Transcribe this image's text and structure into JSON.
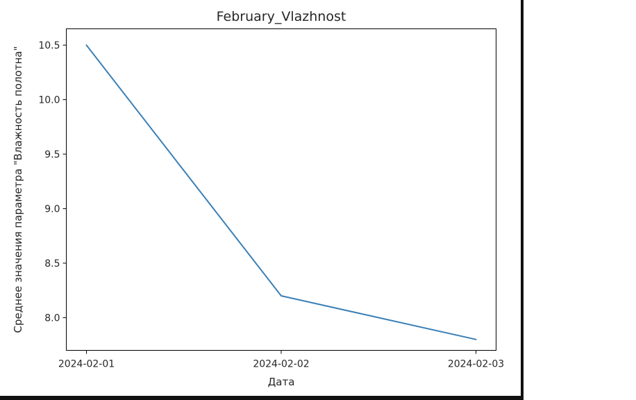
{
  "chart_data": {
    "type": "line",
    "title": "February_Vlazhnost",
    "xlabel": "Дата",
    "ylabel": "Среднее значения параметра \"Влажность полотна\"",
    "x": [
      "2024-02-01",
      "2024-02-02",
      "2024-02-03"
    ],
    "series": [
      {
        "values": [
          10.5,
          8.2,
          7.8
        ],
        "color": "#3a7fb5"
      }
    ],
    "yticks": [
      "8.0",
      "8.5",
      "9.0",
      "9.5",
      "10.0",
      "10.5"
    ],
    "ylim": [
      7.7,
      10.65
    ],
    "grid": false
  }
}
